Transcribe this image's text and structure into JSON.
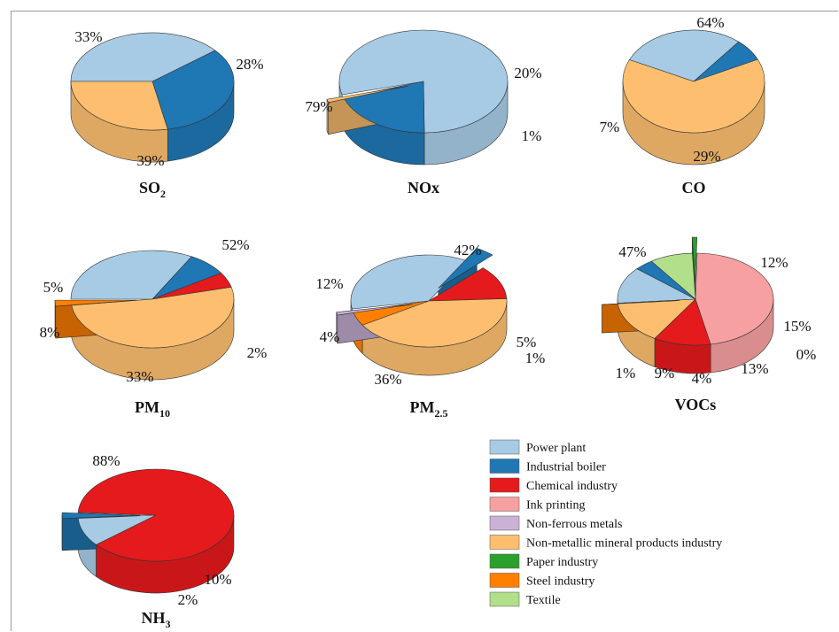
{
  "colors": {
    "Power plant": "#a7cbe5",
    "Industrial boiler": "#1f77b4",
    "Chemical industry": "#e41a1c",
    "Ink printing": "#f7a0a2",
    "Non-ferrous metals": "#c9b2d6",
    "Non-metallic mineral products industry": "#fdbf6f",
    "Paper industry": "#2ca02c",
    "Steel industry": "#ff7f00",
    "Textile": "#b2df8a"
  },
  "legend": [
    "Power plant",
    "Industrial boiler",
    "Chemical industry",
    "Ink printing",
    "Non-ferrous metals",
    "Non-metallic mineral products industry",
    "Paper industry",
    "Steel industry",
    "Textile"
  ],
  "chart_data": [
    {
      "type": "pie",
      "title": "SO2",
      "title_main": "SO",
      "title_sub": "2",
      "slices": [
        {
          "name": "Power plant",
          "value": 39,
          "label": "39%"
        },
        {
          "name": "Industrial boiler",
          "value": 33,
          "label": "33%"
        },
        {
          "name": "Non-metallic mineral products industry",
          "value": 28,
          "label": "28%"
        }
      ]
    },
    {
      "type": "pie",
      "title": "NOx",
      "title_main": "NOx",
      "title_sub": "",
      "slices": [
        {
          "name": "Power plant",
          "value": 79,
          "label": "79%"
        },
        {
          "name": "Industrial boiler",
          "value": 20,
          "label": "20%"
        },
        {
          "name": "Non-metallic mineral products industry",
          "value": 1,
          "label": "1%",
          "exploded": true
        }
      ]
    },
    {
      "type": "pie",
      "title": "CO",
      "title_main": "CO",
      "title_sub": "",
      "slices": [
        {
          "name": "Power plant",
          "value": 29,
          "label": "29%"
        },
        {
          "name": "Industrial boiler",
          "value": 7,
          "label": "7%"
        },
        {
          "name": "Non-metallic mineral products industry",
          "value": 64,
          "label": "64%"
        }
      ]
    },
    {
      "type": "pie",
      "title": "PM10",
      "title_main": "PM",
      "title_sub": "10",
      "slices": [
        {
          "name": "Power plant",
          "value": 33,
          "label": "33%"
        },
        {
          "name": "Industrial boiler",
          "value": 8,
          "label": "8%"
        },
        {
          "name": "Chemical industry",
          "value": 5,
          "label": "5%"
        },
        {
          "name": "Non-metallic mineral products industry",
          "value": 52,
          "label": "52%"
        },
        {
          "name": "Steel industry",
          "value": 2,
          "label": "2%",
          "exploded": true
        }
      ]
    },
    {
      "type": "pie",
      "title": "PM2.5",
      "title_main": "PM",
      "title_sub": "2.5",
      "slices": [
        {
          "name": "Power plant",
          "value": 36,
          "label": "36%"
        },
        {
          "name": "Industrial boiler",
          "value": 4,
          "label": "4%",
          "exploded": true
        },
        {
          "name": "Chemical industry",
          "value": 12,
          "label": "12%"
        },
        {
          "name": "Non-metallic mineral products industry",
          "value": 42,
          "label": "42%"
        },
        {
          "name": "Steel industry",
          "value": 5,
          "label": "5%"
        },
        {
          "name": "Non-ferrous metals",
          "value": 1,
          "label": "1%",
          "exploded": true
        }
      ]
    },
    {
      "type": "pie",
      "title": "VOCs",
      "title_main": "VOCs",
      "title_sub": "",
      "slices": [
        {
          "name": "Power plant",
          "value": 13,
          "label": "13%"
        },
        {
          "name": "Industrial boiler",
          "value": 4,
          "label": "4%"
        },
        {
          "name": "Textile",
          "value": 9,
          "label": "9%"
        },
        {
          "name": "Paper industry",
          "value": 1,
          "label": "1%",
          "exploded": true
        },
        {
          "name": "Ink printing",
          "value": 47,
          "label": "47%"
        },
        {
          "name": "Chemical industry",
          "value": 12,
          "label": "12%"
        },
        {
          "name": "Non-metallic mineral products industry",
          "value": 15,
          "label": "15%"
        },
        {
          "name": "Steel industry",
          "value": 0,
          "label": "0%",
          "exploded": true
        }
      ]
    },
    {
      "type": "pie",
      "title": "NH3",
      "title_main": "NH",
      "title_sub": "3",
      "slices": [
        {
          "name": "Power plant",
          "value": 10,
          "label": "10%"
        },
        {
          "name": "Industrial boiler",
          "value": 2,
          "label": "2%",
          "exploded": true
        },
        {
          "name": "Chemical industry",
          "value": 88,
          "label": "88%"
        }
      ]
    }
  ]
}
